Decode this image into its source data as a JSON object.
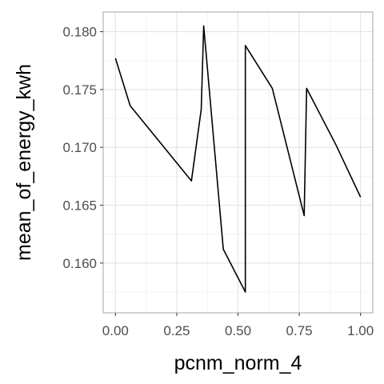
{
  "chart_data": {
    "type": "line",
    "xlabel": "pcnm_norm_4",
    "ylabel": "mean_of_energy_kwh",
    "xlim": [
      -0.05,
      1.05
    ],
    "ylim": [
      0.1557,
      0.1817
    ],
    "x_ticks": [
      0.0,
      0.25,
      0.5,
      0.75,
      1.0
    ],
    "x_tick_labels": [
      "0.00",
      "0.25",
      "0.50",
      "0.75",
      "1.00"
    ],
    "y_ticks": [
      0.16,
      0.165,
      0.17,
      0.175,
      0.18
    ],
    "y_tick_labels": [
      "0.160",
      "0.165",
      "0.170",
      "0.175",
      "0.180"
    ],
    "grid": true,
    "line_color": "#000000",
    "series": [
      {
        "x": [
          0.0,
          0.06,
          0.31,
          0.35,
          0.36,
          0.44,
          0.53,
          0.53,
          0.64,
          0.77,
          0.78,
          0.9,
          1.0
        ],
        "y": [
          0.1777,
          0.1736,
          0.1671,
          0.1733,
          0.1805,
          0.1612,
          0.1575,
          0.1788,
          0.1751,
          0.1641,
          0.1751,
          0.1702,
          0.1657
        ]
      }
    ]
  }
}
